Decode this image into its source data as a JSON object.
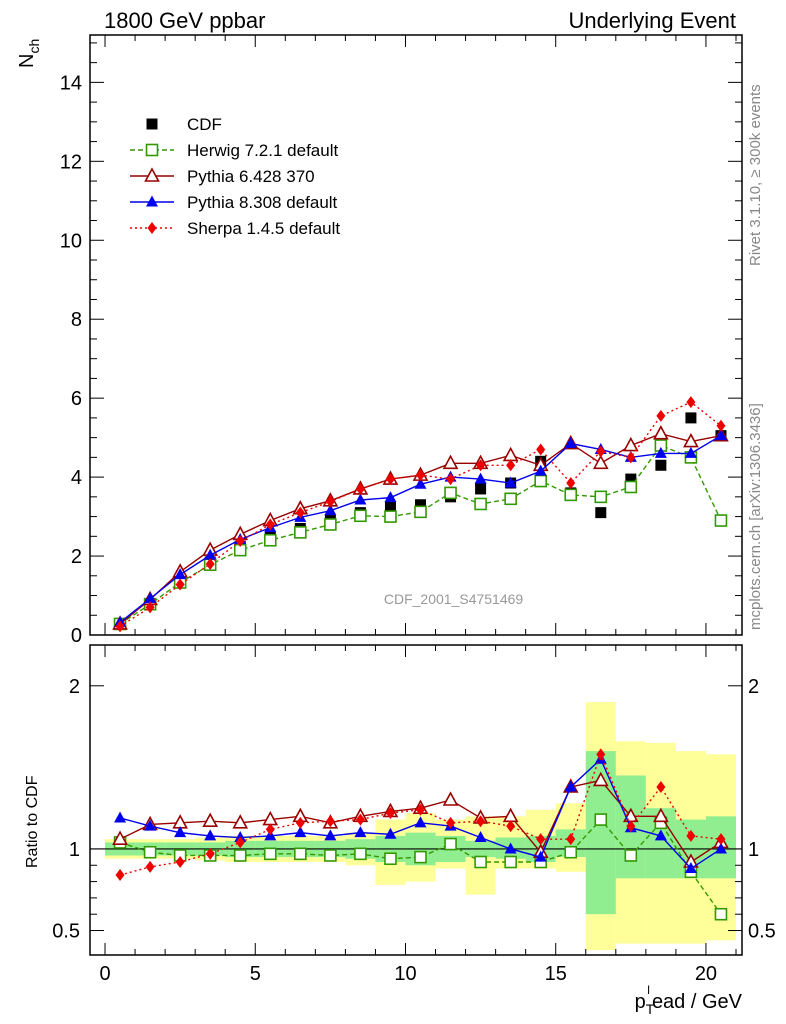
{
  "header": {
    "left": "1800 GeV ppbar",
    "right": "Underlying Event"
  },
  "side_labels": {
    "rivet": "Rivet 3.1.10, ≥ 300k events",
    "mcplots": "mcplots.cern.ch [arXiv:1306.3436]"
  },
  "watermark": "CDF_2001_S4751469",
  "colors": {
    "cdf": "#000000",
    "herwig": "#339900",
    "pythia6": "#990000",
    "pythia8": "#0000ee",
    "sherpa": "#ee0000",
    "band_green": "#90ee90",
    "band_yellow": "#ffff99"
  },
  "chart_data": {
    "type": "line",
    "title": "",
    "x": [
      0.5,
      1.5,
      2.5,
      3.5,
      4.5,
      5.5,
      6.5,
      7.5,
      8.5,
      9.5,
      10.5,
      11.5,
      12.5,
      13.5,
      14.5,
      15.5,
      16.5,
      17.5,
      18.5,
      19.5,
      20.5
    ],
    "xlabel_main": "p",
    "xlabel_sub": "T",
    "xlabel_sup": "l",
    "xlabel_rest": "ead / GeV",
    "xlim": [
      -0.5,
      21.2
    ],
    "xticks": [
      "0",
      "5",
      "10",
      "15",
      "20"
    ],
    "main": {
      "ylabel": "N",
      "ylabel_sub": "ch",
      "ylim": [
        0,
        15.2
      ],
      "yticks": [
        "0",
        "2",
        "4",
        "6",
        "8",
        "10",
        "12",
        "14"
      ],
      "series": [
        {
          "name": "CDF",
          "key": "cdf",
          "marker": "square-filled",
          "values": [
            0.27,
            0.8,
            1.4,
            1.85,
            2.25,
            2.5,
            2.7,
            2.9,
            3.1,
            3.25,
            3.3,
            3.5,
            3.7,
            3.85,
            4.4,
            3.6,
            3.1,
            3.95,
            4.3,
            5.5,
            5.05
          ]
        },
        {
          "name": "Herwig 7.2.1 default",
          "key": "herwig",
          "marker": "square-open",
          "dash": "5,3",
          "values": [
            0.28,
            0.78,
            1.33,
            1.78,
            2.15,
            2.4,
            2.6,
            2.8,
            3.02,
            3.0,
            3.12,
            3.6,
            3.32,
            3.45,
            3.9,
            3.55,
            3.5,
            3.75,
            4.8,
            4.5,
            2.9
          ]
        },
        {
          "name": "Pythia 6.428 370",
          "key": "pythia6",
          "marker": "triangle-open",
          "values": [
            0.28,
            0.9,
            1.6,
            2.15,
            2.55,
            2.9,
            3.2,
            3.4,
            3.7,
            3.95,
            4.05,
            4.35,
            4.35,
            4.55,
            4.3,
            4.85,
            4.35,
            4.8,
            5.1,
            4.9,
            5.05
          ]
        },
        {
          "name": "Pythia 8.308 default",
          "key": "pythia8",
          "marker": "triangle-filled",
          "values": [
            0.32,
            0.92,
            1.53,
            2.02,
            2.42,
            2.72,
            2.98,
            3.15,
            3.42,
            3.48,
            3.82,
            4.0,
            3.95,
            3.85,
            4.15,
            4.85,
            4.7,
            4.5,
            4.6,
            4.6,
            5.05
          ]
        },
        {
          "name": "Sherpa 1.4.5 default",
          "key": "sherpa",
          "marker": "diamond-filled",
          "dash": "2,3",
          "values": [
            0.22,
            0.7,
            1.28,
            1.8,
            2.38,
            2.8,
            3.1,
            3.38,
            3.7,
            3.95,
            4.05,
            3.95,
            4.3,
            4.3,
            4.7,
            3.85,
            4.65,
            4.5,
            5.55,
            5.9,
            5.3
          ]
        }
      ]
    },
    "ratio": {
      "ylabel": "Ratio to CDF",
      "ylim": [
        0.35,
        2.25
      ],
      "yticks": [
        "0.5",
        "1",
        "2"
      ],
      "band_x_edges": [
        0,
        1,
        2,
        3,
        4,
        5,
        6,
        7,
        8,
        9,
        10,
        11,
        12,
        13,
        14,
        15,
        16,
        17,
        18,
        19,
        20,
        21
      ],
      "green_band": [
        [
          0.96,
          1.04
        ],
        [
          0.96,
          1.04
        ],
        [
          0.96,
          1.04
        ],
        [
          0.96,
          1.04
        ],
        [
          0.95,
          1.05
        ],
        [
          0.95,
          1.05
        ],
        [
          0.95,
          1.05
        ],
        [
          0.95,
          1.05
        ],
        [
          0.94,
          1.06
        ],
        [
          0.92,
          1.08
        ],
        [
          0.9,
          1.1
        ],
        [
          0.92,
          1.08
        ],
        [
          0.95,
          1.05
        ],
        [
          0.94,
          1.07
        ],
        [
          0.92,
          1.08
        ],
        [
          0.95,
          1.12
        ],
        [
          0.6,
          1.6
        ],
        [
          0.82,
          1.45
        ],
        [
          0.82,
          1.25
        ],
        [
          0.82,
          1.18
        ],
        [
          0.82,
          1.2
        ]
      ],
      "yellow_band": [
        [
          0.94,
          1.06
        ],
        [
          0.94,
          1.06
        ],
        [
          0.94,
          1.06
        ],
        [
          0.93,
          1.07
        ],
        [
          0.92,
          1.08
        ],
        [
          0.92,
          1.08
        ],
        [
          0.92,
          1.08
        ],
        [
          0.92,
          1.08
        ],
        [
          0.9,
          1.1
        ],
        [
          0.78,
          1.18
        ],
        [
          0.8,
          1.22
        ],
        [
          0.88,
          1.18
        ],
        [
          0.72,
          1.2
        ],
        [
          0.88,
          1.2
        ],
        [
          0.88,
          1.24
        ],
        [
          0.86,
          1.28
        ],
        [
          0.38,
          1.9
        ],
        [
          0.42,
          1.66
        ],
        [
          0.42,
          1.65
        ],
        [
          0.42,
          1.6
        ],
        [
          0.44,
          1.58
        ]
      ],
      "series": [
        {
          "key": "herwig",
          "values": [
            1.04,
            0.98,
            0.96,
            0.96,
            0.96,
            0.97,
            0.97,
            0.96,
            0.97,
            0.94,
            0.95,
            1.03,
            0.92,
            0.92,
            0.92,
            0.98,
            1.18,
            0.96,
            1.16,
            0.86,
            0.6
          ]
        },
        {
          "key": "pythia6",
          "values": [
            1.06,
            1.15,
            1.16,
            1.17,
            1.16,
            1.18,
            1.2,
            1.16,
            1.2,
            1.23,
            1.25,
            1.3,
            1.19,
            1.2,
            0.98,
            1.38,
            1.42,
            1.2,
            1.2,
            0.92,
            1.04
          ]
        },
        {
          "key": "pythia8",
          "values": [
            1.19,
            1.14,
            1.1,
            1.08,
            1.07,
            1.08,
            1.1,
            1.08,
            1.1,
            1.09,
            1.16,
            1.14,
            1.07,
            1.0,
            0.95,
            1.38,
            1.55,
            1.13,
            1.08,
            0.88,
            1.0
          ]
        },
        {
          "key": "sherpa",
          "values": [
            0.84,
            0.89,
            0.92,
            0.97,
            1.04,
            1.12,
            1.16,
            1.17,
            1.18,
            1.22,
            1.24,
            1.16,
            1.17,
            1.14,
            1.06,
            1.06,
            1.58,
            1.14,
            1.38,
            1.08,
            1.06
          ]
        }
      ]
    }
  }
}
